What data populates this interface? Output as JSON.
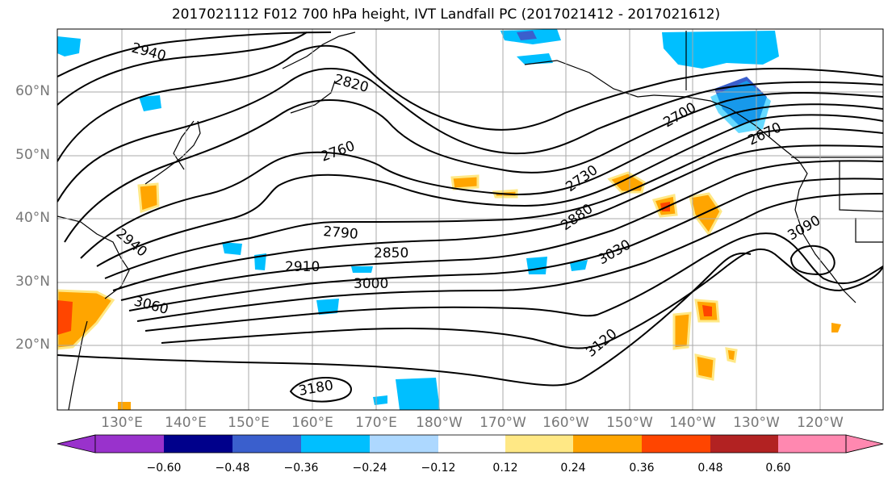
{
  "title": "2017021112 F012 700 hPa height, IVT Landfall PC (2017021412 - 2017021612)",
  "lat_labels": [
    "60°N",
    "50°N",
    "40°N",
    "30°N",
    "20°N"
  ],
  "lon_labels": [
    "130°E",
    "140°E",
    "150°E",
    "160°E",
    "170°E",
    "180°W",
    "170°W",
    "160°W",
    "150°W",
    "140°W",
    "130°W",
    "120°W"
  ],
  "colorbar": {
    "ticks": [
      "−0.60",
      "−0.48",
      "−0.36",
      "−0.24",
      "−0.12",
      "0.12",
      "0.24",
      "0.36",
      "0.48",
      "0.60"
    ],
    "colors": [
      "#9932cc",
      "#00008b",
      "#3a5fcd",
      "#00bfff",
      "#add8ff",
      "#ffffff",
      "#ffe885",
      "#ffa500",
      "#ff4500",
      "#b22222",
      "#ff88b0"
    ]
  },
  "contour_labels": [
    "2940",
    "2820",
    "2760",
    "2700",
    "2670",
    "2730",
    "2880",
    "3030",
    "3090",
    "2790",
    "2850",
    "2910",
    "3000",
    "2940",
    "3060",
    "3120",
    "3180"
  ]
}
